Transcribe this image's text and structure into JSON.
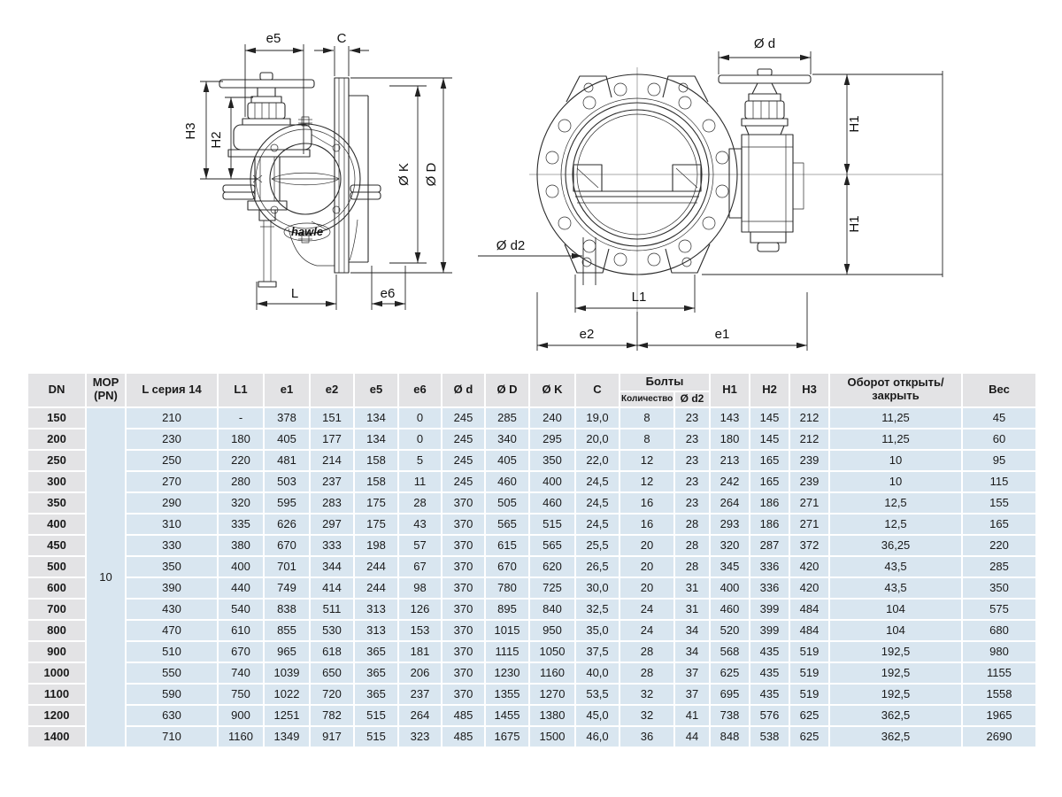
{
  "drawing": {
    "left": {
      "logo": "hawle",
      "labels": {
        "e5": "e5",
        "c": "C",
        "h3": "H3",
        "h2": "H2",
        "k": "Ø K",
        "d_big": "Ø D",
        "l": "L",
        "e6": "e6"
      }
    },
    "right": {
      "labels": {
        "d": "Ø d",
        "h1_top": "H1",
        "h1_bottom": "H1",
        "d2": "Ø d2",
        "l1": "L1",
        "e2": "e2",
        "e1": "e1"
      }
    }
  },
  "table": {
    "headers": {
      "dn": "DN",
      "mop": "MOP (PN)",
      "l_series": "L серия 14",
      "l1": "L1",
      "e1": "e1",
      "e2": "e2",
      "e5": "e5",
      "e6": "e6",
      "d_small": "Ø d",
      "d_big": "Ø D",
      "k": "Ø K",
      "c": "C",
      "bolts": "Болты",
      "bolts_qty": "Количество",
      "bolts_d2": "Ø d2",
      "h1": "H1",
      "h2": "H2",
      "h3": "H3",
      "turns": "Оборот открыть/закрыть",
      "weight": "Вес"
    },
    "mop_value": "10",
    "rows": [
      {
        "dn": "150",
        "values": [
          "210",
          "-",
          "378",
          "151",
          "134",
          "0",
          "245",
          "285",
          "240",
          "19,0",
          "8",
          "23",
          "143",
          "145",
          "212",
          "11,25",
          "45"
        ]
      },
      {
        "dn": "200",
        "values": [
          "230",
          "180",
          "405",
          "177",
          "134",
          "0",
          "245",
          "340",
          "295",
          "20,0",
          "8",
          "23",
          "180",
          "145",
          "212",
          "11,25",
          "60"
        ]
      },
      {
        "dn": "250",
        "values": [
          "250",
          "220",
          "481",
          "214",
          "158",
          "5",
          "245",
          "405",
          "350",
          "22,0",
          "12",
          "23",
          "213",
          "165",
          "239",
          "10",
          "95"
        ]
      },
      {
        "dn": "300",
        "values": [
          "270",
          "280",
          "503",
          "237",
          "158",
          "11",
          "245",
          "460",
          "400",
          "24,5",
          "12",
          "23",
          "242",
          "165",
          "239",
          "10",
          "115"
        ]
      },
      {
        "dn": "350",
        "values": [
          "290",
          "320",
          "595",
          "283",
          "175",
          "28",
          "370",
          "505",
          "460",
          "24,5",
          "16",
          "23",
          "264",
          "186",
          "271",
          "12,5",
          "155"
        ]
      },
      {
        "dn": "400",
        "values": [
          "310",
          "335",
          "626",
          "297",
          "175",
          "43",
          "370",
          "565",
          "515",
          "24,5",
          "16",
          "28",
          "293",
          "186",
          "271",
          "12,5",
          "165"
        ]
      },
      {
        "dn": "450",
        "values": [
          "330",
          "380",
          "670",
          "333",
          "198",
          "57",
          "370",
          "615",
          "565",
          "25,5",
          "20",
          "28",
          "320",
          "287",
          "372",
          "36,25",
          "220"
        ]
      },
      {
        "dn": "500",
        "values": [
          "350",
          "400",
          "701",
          "344",
          "244",
          "67",
          "370",
          "670",
          "620",
          "26,5",
          "20",
          "28",
          "345",
          "336",
          "420",
          "43,5",
          "285"
        ]
      },
      {
        "dn": "600",
        "values": [
          "390",
          "440",
          "749",
          "414",
          "244",
          "98",
          "370",
          "780",
          "725",
          "30,0",
          "20",
          "31",
          "400",
          "336",
          "420",
          "43,5",
          "350"
        ]
      },
      {
        "dn": "700",
        "values": [
          "430",
          "540",
          "838",
          "511",
          "313",
          "126",
          "370",
          "895",
          "840",
          "32,5",
          "24",
          "31",
          "460",
          "399",
          "484",
          "104",
          "575"
        ]
      },
      {
        "dn": "800",
        "values": [
          "470",
          "610",
          "855",
          "530",
          "313",
          "153",
          "370",
          "1015",
          "950",
          "35,0",
          "24",
          "34",
          "520",
          "399",
          "484",
          "104",
          "680"
        ]
      },
      {
        "dn": "900",
        "values": [
          "510",
          "670",
          "965",
          "618",
          "365",
          "181",
          "370",
          "1115",
          "1050",
          "37,5",
          "28",
          "34",
          "568",
          "435",
          "519",
          "192,5",
          "980"
        ]
      },
      {
        "dn": "1000",
        "values": [
          "550",
          "740",
          "1039",
          "650",
          "365",
          "206",
          "370",
          "1230",
          "1160",
          "40,0",
          "28",
          "37",
          "625",
          "435",
          "519",
          "192,5",
          "1155"
        ]
      },
      {
        "dn": "1100",
        "values": [
          "590",
          "750",
          "1022",
          "720",
          "365",
          "237",
          "370",
          "1355",
          "1270",
          "53,5",
          "32",
          "37",
          "695",
          "435",
          "519",
          "192,5",
          "1558"
        ]
      },
      {
        "dn": "1200",
        "values": [
          "630",
          "900",
          "1251",
          "782",
          "515",
          "264",
          "485",
          "1455",
          "1380",
          "45,0",
          "32",
          "41",
          "738",
          "576",
          "625",
          "362,5",
          "1965"
        ]
      },
      {
        "dn": "1400",
        "values": [
          "710",
          "1160",
          "1349",
          "917",
          "515",
          "323",
          "485",
          "1675",
          "1500",
          "46,0",
          "36",
          "44",
          "848",
          "538",
          "625",
          "362,5",
          "2690"
        ]
      }
    ]
  }
}
